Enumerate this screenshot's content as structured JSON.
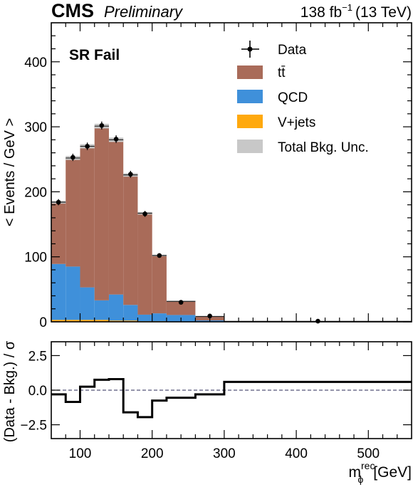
{
  "header": {
    "experiment": "CMS",
    "status": "Preliminary",
    "lumi_value": "138 fb",
    "lumi_exp": "−1",
    "lumi_energy": "(13 TeV)"
  },
  "region_label": "SR Fail",
  "legend": {
    "data": "Data",
    "ttbar": "tt̄",
    "qcd": "QCD",
    "vjets": "V+jets",
    "unc": "Total Bkg. Unc."
  },
  "colors": {
    "ttbar": "#a96b59",
    "qcd": "#3f90da",
    "vjets": "#ffa90e",
    "unc": "#c8c8c8",
    "data": "#000000",
    "zero_line": "#555577"
  },
  "chart_data": [
    {
      "type": "bar",
      "stacked": true,
      "ylabel": "< Events / GeV >",
      "ylim": [
        0,
        460
      ],
      "xlim": [
        60,
        560
      ],
      "yticks": [
        0,
        100,
        200,
        300,
        400
      ],
      "grid": false,
      "legend_position": "top-right",
      "bin_edges": [
        60,
        80,
        100,
        120,
        140,
        160,
        180,
        200,
        220,
        260,
        300,
        560
      ],
      "series": [
        {
          "name": "V+jets",
          "key": "vjets",
          "values": [
            3,
            3,
            3,
            3,
            2,
            2,
            1,
            1,
            0.5,
            0.2,
            0
          ]
        },
        {
          "name": "QCD",
          "key": "qcd",
          "values": [
            86,
            82,
            50,
            30,
            40,
            24,
            10,
            12,
            10,
            2,
            0.2
          ]
        },
        {
          "name": "tt̄",
          "key": "ttbar",
          "values": [
            95,
            167,
            217,
            268,
            238,
            200,
            156,
            89,
            21,
            6,
            0.5
          ]
        }
      ],
      "data_points": {
        "name": "Data",
        "x": [
          70,
          90,
          110,
          130,
          150,
          170,
          190,
          210,
          240,
          280,
          430
        ],
        "y": [
          184,
          253,
          270,
          302,
          281,
          227,
          166,
          102,
          30,
          9,
          1
        ]
      }
    },
    {
      "type": "line",
      "drawstyle": "steps",
      "ylabel": "(Data - Bkg.) / σ",
      "xlabel_main": "m",
      "xlabel_sub": "ϕ",
      "xlabel_sup": "rec",
      "xlabel_unit": "[GeV]",
      "ylim": [
        -3.5,
        3.5
      ],
      "xlim": [
        60,
        560
      ],
      "yticks": [
        -2.5,
        0.0,
        2.5
      ],
      "ytick_labels": [
        "−2.5",
        "0.0",
        "2.5"
      ],
      "xticks": [
        100,
        200,
        300,
        400,
        500
      ],
      "xtick_labels": [
        "100",
        "200",
        "300",
        "400",
        "500"
      ],
      "reference_line": 0,
      "bin_edges": [
        60,
        80,
        100,
        120,
        140,
        160,
        180,
        200,
        220,
        260,
        300,
        560
      ],
      "values": [
        -0.3,
        -0.85,
        0.25,
        0.75,
        0.8,
        -1.6,
        -1.95,
        -0.75,
        -0.55,
        -0.3,
        0.6
      ]
    }
  ]
}
